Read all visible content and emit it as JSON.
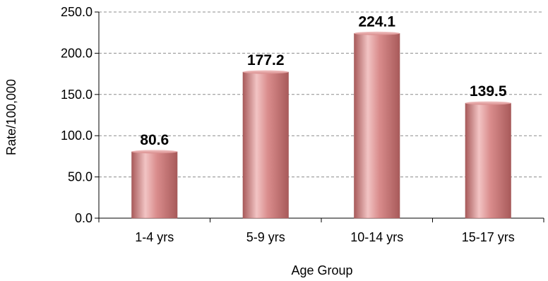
{
  "chart_data": {
    "type": "bar",
    "categories": [
      "1-4 yrs",
      "5-9 yrs",
      "10-14 yrs",
      "15-17 yrs"
    ],
    "values": [
      80.6,
      177.2,
      224.1,
      139.5
    ],
    "data_labels": [
      "80.6",
      "177.2",
      "224.1",
      "139.5"
    ],
    "xlabel": "Age Group",
    "ylabel": "Rate/100,000",
    "ylim": [
      0,
      250
    ],
    "yticks": [
      "0.0",
      "50.0",
      "100.0",
      "150.0",
      "200.0",
      "250.0"
    ],
    "ytick_values": [
      0,
      50,
      100,
      150,
      200,
      250
    ],
    "grid": true,
    "grid_style": "dashed",
    "legend": "none",
    "bar_color": "#d98c8c",
    "bar_highlight": "#f2c4c4",
    "bar_shadow": "#a85a5a"
  }
}
